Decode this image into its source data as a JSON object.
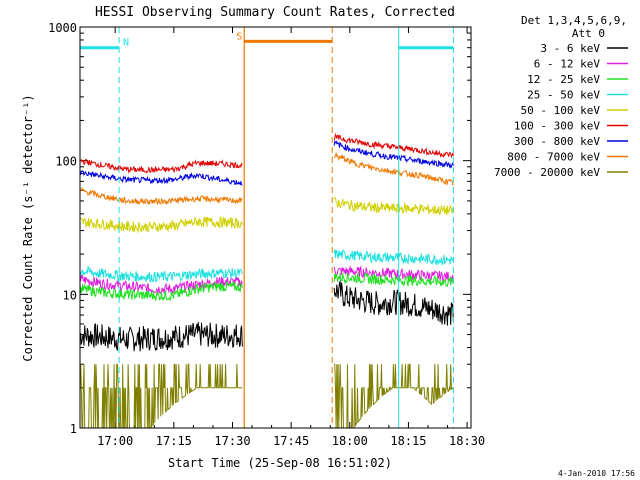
{
  "title": "HESSI Observing Summary Count Rates, Corrected",
  "footer_timestamp": "4-Jan-2010 17:56",
  "legend": {
    "header_line1": "Det 1,3,4,5,6,9,",
    "header_line2": "Att 0",
    "entries": [
      {
        "label": "3 - 6 keV",
        "color": "#000000"
      },
      {
        "label": "6 - 12 keV",
        "color": "#e020e0"
      },
      {
        "label": "12 - 25 keV",
        "color": "#20e020"
      },
      {
        "label": "25 - 50 keV",
        "color": "#20e0e0"
      },
      {
        "label": "50 - 100 keV",
        "color": "#d0d000"
      },
      {
        "label": "100 - 300 keV",
        "color": "#e00000"
      },
      {
        "label": "300 - 800 keV",
        "color": "#0000e0"
      },
      {
        "label": "800 - 7000 keV",
        "color": "#f07800"
      },
      {
        "label": "7000 - 20000 keV",
        "color": "#808000"
      }
    ]
  },
  "chart_data": {
    "type": "line",
    "title": "HESSI Observing Summary Count Rates, Corrected",
    "xlabel": "Start Time (25-Sep-08 16:51:02)",
    "ylabel": "Corrected Count Rate (s⁻¹ detector⁻¹)",
    "x_unit": "minutes since 16:51:02",
    "xlim": [
      0,
      100
    ],
    "ylim": [
      1,
      1000
    ],
    "yscale": "log",
    "x_ticks": [
      {
        "value": 9,
        "label": "17:00"
      },
      {
        "value": 24,
        "label": "17:15"
      },
      {
        "value": 39,
        "label": "17:30"
      },
      {
        "value": 54,
        "label": "17:45"
      },
      {
        "value": 69,
        "label": "18:00"
      },
      {
        "value": 84,
        "label": "18:15"
      },
      {
        "value": 99,
        "label": "18:30"
      }
    ],
    "y_ticks": [
      {
        "value": 1,
        "label": "1"
      },
      {
        "value": 10,
        "label": "10"
      },
      {
        "value": 100,
        "label": "100"
      },
      {
        "value": 1000,
        "label": "1000"
      }
    ],
    "data_gap": [
      42,
      64.5
    ],
    "series": [
      {
        "name": "3 - 6 keV",
        "color": "#000000",
        "segments": [
          {
            "x": [
              0,
              6,
              12,
              18,
              24,
              30,
              36,
              41.5
            ],
            "y": [
              5.0,
              4.8,
              4.6,
              4.7,
              4.8,
              5.0,
              4.9,
              5.0
            ]
          },
          {
            "x": [
              65,
              68,
              72,
              76,
              80,
              84,
              88,
              92,
              95.5
            ],
            "y": [
              11,
              9.5,
              9,
              8.5,
              8.8,
              8.5,
              8.0,
              7.5,
              7.0
            ]
          }
        ]
      },
      {
        "name": "6 - 12 keV",
        "color": "#e020e0",
        "segments": [
          {
            "x": [
              0,
              6,
              12,
              18,
              24,
              30,
              36,
              41.5
            ],
            "y": [
              13,
              12,
              11.5,
              11,
              11,
              11.8,
              12.5,
              12.3
            ]
          },
          {
            "x": [
              65,
              70,
              75,
              80,
              85,
              90,
              95.5
            ],
            "y": [
              15,
              14.8,
              14.5,
              14.3,
              14,
              13.8,
              13.5
            ]
          }
        ]
      },
      {
        "name": "12 - 25 keV",
        "color": "#20e020",
        "segments": [
          {
            "x": [
              0,
              6,
              12,
              18,
              24,
              30,
              36,
              41.5
            ],
            "y": [
              11,
              10.3,
              10,
              9.8,
              9.8,
              11,
              11.5,
              11.3
            ]
          },
          {
            "x": [
              65,
              70,
              75,
              80,
              85,
              90,
              95.5
            ],
            "y": [
              13.5,
              13.3,
              13,
              12.8,
              12.7,
              12.5,
              12.3
            ]
          }
        ]
      },
      {
        "name": "25 - 50 keV",
        "color": "#20e0e0",
        "segments": [
          {
            "x": [
              0,
              6,
              12,
              18,
              24,
              30,
              36,
              41.5
            ],
            "y": [
              15,
              14.2,
              13.7,
              13.5,
              13.6,
              14.2,
              14.5,
              14.3
            ]
          },
          {
            "x": [
              65,
              70,
              75,
              80,
              85,
              90,
              95.5
            ],
            "y": [
              20,
              19.5,
              19,
              18.8,
              18.6,
              18.3,
              18
            ]
          }
        ]
      },
      {
        "name": "50 - 100 keV",
        "color": "#d0d000",
        "segments": [
          {
            "x": [
              0,
              6,
              12,
              18,
              24,
              30,
              36,
              41.5
            ],
            "y": [
              35,
              33.5,
              32,
              32,
              32.5,
              35,
              34.5,
              34
            ]
          },
          {
            "x": [
              65,
              70,
              75,
              80,
              85,
              90,
              95.5
            ],
            "y": [
              49,
              46,
              44.5,
              44,
              44,
              43,
              42
            ]
          }
        ]
      },
      {
        "name": "100 - 300 keV",
        "color": "#e00000",
        "segments": [
          {
            "x": [
              0,
              6,
              12,
              18,
              24,
              30,
              36,
              41.5
            ],
            "y": [
              100,
              92,
              86,
              85,
              86,
              96,
              95,
              92
            ]
          },
          {
            "x": [
              65,
              70,
              75,
              80,
              85,
              90,
              95.5
            ],
            "y": [
              150,
              140,
              132,
              127,
              122,
              115,
              110
            ]
          }
        ]
      },
      {
        "name": "300 - 800 keV",
        "color": "#0000e0",
        "segments": [
          {
            "x": [
              0,
              6,
              12,
              18,
              24,
              30,
              36,
              41.5
            ],
            "y": [
              82,
              76,
              72,
              71,
              72,
              78,
              72,
              68
            ]
          },
          {
            "x": [
              65,
              70,
              75,
              80,
              85,
              90,
              95.5
            ],
            "y": [
              135,
              120,
              112,
              106,
              101,
              97,
              92
            ]
          }
        ]
      },
      {
        "name": "800 - 7000 keV",
        "color": "#f07800",
        "segments": [
          {
            "x": [
              0,
              6,
              12,
              18,
              24,
              30,
              36,
              41.5
            ],
            "y": [
              60,
              54,
              50,
              49.5,
              50,
              52,
              51,
              50
            ]
          },
          {
            "x": [
              65,
              70,
              75,
              80,
              85,
              90,
              95.5
            ],
            "y": [
              110,
              96,
              88,
              83,
              79,
              74,
              68
            ]
          }
        ]
      },
      {
        "name": "7000 - 20000 keV",
        "color": "#808000",
        "segments": [
          {
            "x": [
              0,
              6,
              12,
              18,
              24,
              30,
              36,
              41.5
            ],
            "y": [
              1,
              1,
              1,
              1,
              1.5,
              2,
              2,
              2
            ]
          },
          {
            "x": [
              65,
              70,
              75,
              80,
              85,
              90,
              95.5
            ],
            "y": [
              1,
              1,
              1.5,
              2,
              2,
              1.5,
              2
            ]
          }
        ]
      }
    ],
    "flags": [
      {
        "label": "",
        "color": "#20e0e0",
        "y": 700,
        "start": 0,
        "end": 10,
        "dashed_start": false,
        "dashed_end": true
      },
      {
        "label": "N",
        "color": "#20e0e0",
        "y": 700,
        "label_x": 11
      },
      {
        "label": "S",
        "color": "#f07800",
        "y": 780,
        "start": 42,
        "end": 64.5,
        "dashed_start": false,
        "dashed_end": true,
        "label_x": 40
      },
      {
        "label": "",
        "color": "#20e0e0",
        "y": 700,
        "start": 81.5,
        "end": 95.5,
        "dashed_start": false,
        "dashed_end": true
      }
    ]
  }
}
